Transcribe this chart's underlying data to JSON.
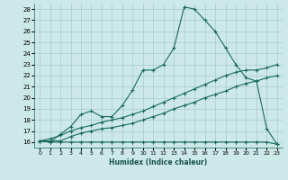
{
  "xlabel": "Humidex (Indice chaleur)",
  "xlim": [
    -0.5,
    23.5
  ],
  "ylim": [
    15.5,
    28.5
  ],
  "xticks": [
    0,
    1,
    2,
    3,
    4,
    5,
    6,
    7,
    8,
    9,
    10,
    11,
    12,
    13,
    14,
    15,
    16,
    17,
    18,
    19,
    20,
    21,
    22,
    23
  ],
  "yticks": [
    16,
    17,
    18,
    19,
    20,
    21,
    22,
    23,
    24,
    25,
    26,
    27,
    28
  ],
  "background_color": "#cce8e8",
  "grid_color": "#aacccc",
  "line_color": "#1a6b5a",
  "series": [
    {
      "x": [
        0,
        1,
        2,
        3,
        4,
        5,
        6,
        7,
        8,
        9,
        10,
        11,
        12,
        13,
        14,
        15,
        16,
        17,
        18,
        19,
        20,
        21,
        22,
        23
      ],
      "y": [
        16.1,
        16.0,
        16.0,
        16.0,
        16.0,
        16.0,
        16.0,
        16.0,
        16.0,
        16.0,
        16.0,
        16.0,
        16.0,
        16.0,
        16.0,
        16.0,
        16.0,
        16.0,
        16.0,
        16.0,
        16.0,
        16.0,
        16.0,
        15.8
      ]
    },
    {
      "x": [
        0,
        1,
        2,
        3,
        4,
        5,
        6,
        7,
        8,
        9,
        10,
        11,
        12,
        13,
        14,
        15,
        16,
        17,
        18,
        19,
        20,
        21,
        22,
        23
      ],
      "y": [
        16.1,
        16.1,
        16.1,
        16.5,
        16.8,
        17.0,
        17.2,
        17.3,
        17.5,
        17.7,
        18.0,
        18.3,
        18.6,
        19.0,
        19.3,
        19.6,
        20.0,
        20.3,
        20.6,
        21.0,
        21.3,
        21.5,
        21.8,
        22.0
      ]
    },
    {
      "x": [
        0,
        1,
        2,
        3,
        4,
        5,
        6,
        7,
        8,
        9,
        10,
        11,
        12,
        13,
        14,
        15,
        16,
        17,
        18,
        19,
        20,
        21,
        22,
        23
      ],
      "y": [
        16.1,
        16.3,
        16.6,
        17.0,
        17.3,
        17.5,
        17.8,
        18.0,
        18.2,
        18.5,
        18.8,
        19.2,
        19.6,
        20.0,
        20.4,
        20.8,
        21.2,
        21.6,
        22.0,
        22.3,
        22.5,
        22.5,
        22.7,
        23.0
      ]
    },
    {
      "x": [
        0,
        1,
        2,
        3,
        4,
        5,
        6,
        7,
        8,
        9,
        10,
        11,
        12,
        13,
        14,
        15,
        16,
        17,
        18,
        19,
        20,
        21,
        22,
        23
      ],
      "y": [
        16.1,
        16.0,
        16.7,
        17.4,
        18.5,
        18.8,
        18.3,
        18.3,
        19.3,
        20.7,
        22.5,
        22.5,
        23.0,
        24.5,
        28.2,
        28.0,
        27.0,
        26.0,
        24.5,
        23.0,
        21.8,
        21.5,
        17.2,
        15.8
      ]
    }
  ]
}
